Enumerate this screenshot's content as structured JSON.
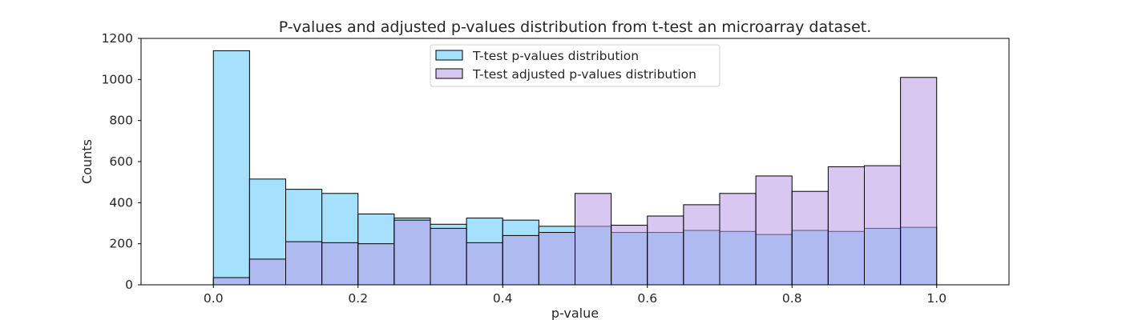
{
  "chart_data": {
    "type": "bar",
    "title": "P-values and adjusted p-values distribution from t-test an microarray dataset.",
    "xlabel": "p-value",
    "ylabel": "Counts",
    "xlim": [
      -0.1,
      1.1
    ],
    "ylim": [
      0,
      1200
    ],
    "xticks": [
      0.0,
      0.2,
      0.4,
      0.6,
      0.8,
      1.0
    ],
    "xtick_labels": [
      "0.0",
      "0.2",
      "0.4",
      "0.6",
      "0.8",
      "1.0"
    ],
    "yticks": [
      0,
      200,
      400,
      600,
      800,
      1000,
      1200
    ],
    "ytick_labels": [
      "0",
      "200",
      "400",
      "600",
      "800",
      "1000",
      "1200"
    ],
    "grid": false,
    "legend_position": "top-center",
    "bin_edges": [
      0.0,
      0.05,
      0.1,
      0.15,
      0.2,
      0.25,
      0.3,
      0.35,
      0.4,
      0.45,
      0.5,
      0.55,
      0.6,
      0.65,
      0.7,
      0.75,
      0.8,
      0.85,
      0.9,
      0.95,
      1.0
    ],
    "series": [
      {
        "name": "T-test p-values distribution",
        "color": "#7fd4fb",
        "opacity": 0.7,
        "values": [
          1140,
          515,
          465,
          445,
          345,
          325,
          295,
          325,
          315,
          285,
          285,
          255,
          255,
          265,
          260,
          245,
          265,
          260,
          275,
          280
        ]
      },
      {
        "name": "T-test adjusted p-values distribution",
        "color": "#b89ae6",
        "opacity": 0.55,
        "values": [
          35,
          125,
          210,
          205,
          200,
          315,
          275,
          205,
          240,
          255,
          445,
          290,
          335,
          390,
          445,
          530,
          455,
          575,
          580,
          1010
        ]
      }
    ]
  }
}
